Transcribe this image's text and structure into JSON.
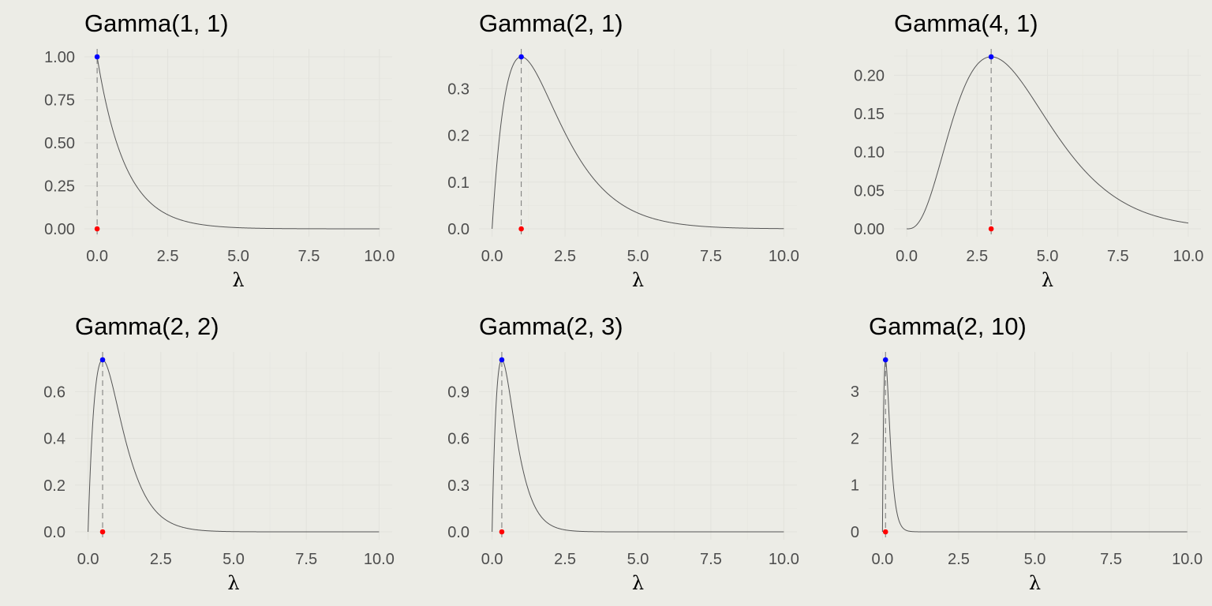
{
  "chart_data": [
    {
      "type": "line",
      "title": "Gamma(1, 1)",
      "xlabel": "λ",
      "ylabel": "",
      "shape": 1,
      "rate": 1,
      "xlim": [
        0,
        10
      ],
      "ylim": [
        0,
        1.0
      ],
      "xticks": [
        0,
        2.5,
        5,
        7.5,
        10
      ],
      "xtick_labels": [
        "0.0",
        "2.5",
        "5.0",
        "7.5",
        "10.0"
      ],
      "yticks": [
        0,
        0.25,
        0.5,
        0.75,
        1.0
      ],
      "ytick_labels": [
        "0.00",
        "0.25",
        "0.50",
        "0.75",
        "1.00"
      ],
      "mode_x": 0,
      "mode_density": 1.0,
      "grid": true
    },
    {
      "type": "line",
      "title": "Gamma(2, 1)",
      "xlabel": "λ",
      "ylabel": "",
      "shape": 2,
      "rate": 1,
      "xlim": [
        0,
        10
      ],
      "ylim": [
        0,
        0.368
      ],
      "xticks": [
        0,
        2.5,
        5,
        7.5,
        10
      ],
      "xtick_labels": [
        "0.0",
        "2.5",
        "5.0",
        "7.5",
        "10.0"
      ],
      "yticks": [
        0,
        0.1,
        0.2,
        0.3
      ],
      "ytick_labels": [
        "0.0",
        "0.1",
        "0.2",
        "0.3"
      ],
      "mode_x": 1,
      "mode_density": 0.368,
      "grid": true
    },
    {
      "type": "line",
      "title": "Gamma(4, 1)",
      "xlabel": "λ",
      "ylabel": "",
      "shape": 4,
      "rate": 1,
      "xlim": [
        0,
        10
      ],
      "ylim": [
        0,
        0.224
      ],
      "xticks": [
        0,
        2.5,
        5,
        7.5,
        10
      ],
      "xtick_labels": [
        "0.0",
        "2.5",
        "5.0",
        "7.5",
        "10.0"
      ],
      "yticks": [
        0,
        0.05,
        0.1,
        0.15,
        0.2
      ],
      "ytick_labels": [
        "0.00",
        "0.05",
        "0.10",
        "0.15",
        "0.20"
      ],
      "mode_x": 3,
      "mode_density": 0.224,
      "grid": true
    },
    {
      "type": "line",
      "title": "Gamma(2, 2)",
      "xlabel": "λ",
      "ylabel": "",
      "shape": 2,
      "rate": 2,
      "xlim": [
        0,
        10
      ],
      "ylim": [
        0,
        0.736
      ],
      "xticks": [
        0,
        2.5,
        5,
        7.5,
        10
      ],
      "xtick_labels": [
        "0.0",
        "2.5",
        "5.0",
        "7.5",
        "10.0"
      ],
      "yticks": [
        0,
        0.2,
        0.4,
        0.6
      ],
      "ytick_labels": [
        "0.0",
        "0.2",
        "0.4",
        "0.6"
      ],
      "mode_x": 0.5,
      "mode_density": 0.736,
      "grid": true
    },
    {
      "type": "line",
      "title": "Gamma(2, 3)",
      "xlabel": "λ",
      "ylabel": "",
      "shape": 2,
      "rate": 3,
      "xlim": [
        0,
        10
      ],
      "ylim": [
        0,
        1.104
      ],
      "xticks": [
        0,
        2.5,
        5,
        7.5,
        10
      ],
      "xtick_labels": [
        "0.0",
        "2.5",
        "5.0",
        "7.5",
        "10.0"
      ],
      "yticks": [
        0,
        0.3,
        0.6,
        0.9
      ],
      "ytick_labels": [
        "0.0",
        "0.3",
        "0.6",
        "0.9"
      ],
      "mode_x": 0.333,
      "mode_density": 1.104,
      "grid": true
    },
    {
      "type": "line",
      "title": "Gamma(2, 10)",
      "xlabel": "λ",
      "ylabel": "",
      "shape": 2,
      "rate": 10,
      "xlim": [
        0,
        10
      ],
      "ylim": [
        0,
        3.679
      ],
      "xticks": [
        0,
        2.5,
        5,
        7.5,
        10
      ],
      "xtick_labels": [
        "0.0",
        "2.5",
        "5.0",
        "7.5",
        "10.0"
      ],
      "yticks": [
        0,
        1,
        2,
        3
      ],
      "ytick_labels": [
        "0",
        "1",
        "2",
        "3"
      ],
      "mode_x": 0.1,
      "mode_density": 3.679,
      "grid": true
    }
  ],
  "colors": {
    "background": "#ecece6",
    "grid": "#e2e2dc",
    "curve": "#555555",
    "mode_line": "#777777",
    "peak_point": "#0000ff",
    "mode_point": "#ff0000"
  }
}
